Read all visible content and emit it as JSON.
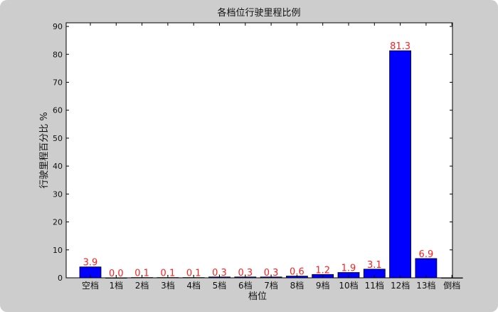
{
  "chart_data": {
    "type": "bar",
    "title": "各档位行驶里程比例",
    "xlabel": "档位",
    "ylabel": "行驶里程百分比 %",
    "categories": [
      "空档",
      "1档",
      "2档",
      "3档",
      "4档",
      "5档",
      "6档",
      "7档",
      "8档",
      "9档",
      "10档",
      "11档",
      "12档",
      "13档",
      "倒档"
    ],
    "values": [
      3.9,
      0.0,
      0.1,
      0.1,
      0.1,
      0.3,
      0.3,
      0.3,
      0.6,
      1.2,
      1.9,
      3.1,
      81.3,
      6.9,
      0
    ],
    "data_labels": [
      "3.9",
      "0.0",
      "0.1",
      "0.1",
      "0.1",
      "0.3",
      "0.3",
      "0.3",
      "0.6",
      "1.2",
      "1.9",
      "3.1",
      "81.3",
      "6.9",
      ""
    ],
    "yticks": [
      0,
      10,
      20,
      30,
      40,
      50,
      60,
      70,
      80,
      90
    ],
    "ylim": [
      0,
      91.3
    ],
    "grid": false,
    "colors": {
      "bar": "#0000ff",
      "label": "#ff2020",
      "background": "#cdcdcd"
    }
  }
}
